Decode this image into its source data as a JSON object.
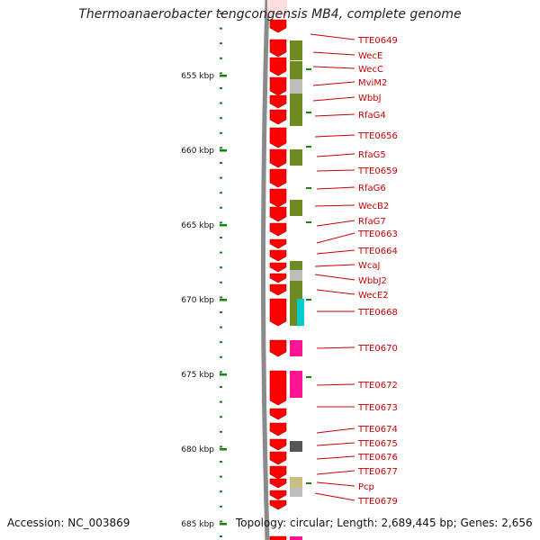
{
  "title": "Thermoanaerobacter tengcongensis MB4, complete genome",
  "footer": {
    "accession": "Accession: NC_003869",
    "topology": "Topology: circular; Length: 2,689,445 bp; Genes: 2,656"
  },
  "scale": {
    "unit": "kbp",
    "ticks": [
      "655 kbp",
      "660 kbp",
      "665 kbp",
      "670 kbp",
      "675 kbp",
      "680 kbp",
      "685 kbp"
    ]
  },
  "genes": [
    "TTE0649",
    "WecE",
    "WecC",
    "MviM2",
    "WbbJ",
    "RfaG4",
    "TTE0656",
    "RfaG5",
    "TTE0659",
    "RfaG6",
    "WecB2",
    "RfaG7",
    "TTE0663",
    "TTE0664",
    "WcaJ",
    "WbbJ2",
    "WecE2",
    "TTE0668",
    "TTE0670",
    "TTE0672",
    "TTE0673",
    "TTE0674",
    "TTE0675",
    "TTE0676",
    "TTE0677",
    "Pcp",
    "TTE0679"
  ],
  "colors": {
    "gene_arrow": "#ff0000",
    "label": "#cc0000",
    "tick": "#118811",
    "backbone": "#8a8a8a",
    "cog_olive": "#6e8b22",
    "cog_grey": "#bdbdbd",
    "cog_magenta": "#ff1493",
    "cog_cyan": "#00cccc",
    "cog_dark": "#555555",
    "cog_khaki": "#c8c080"
  }
}
